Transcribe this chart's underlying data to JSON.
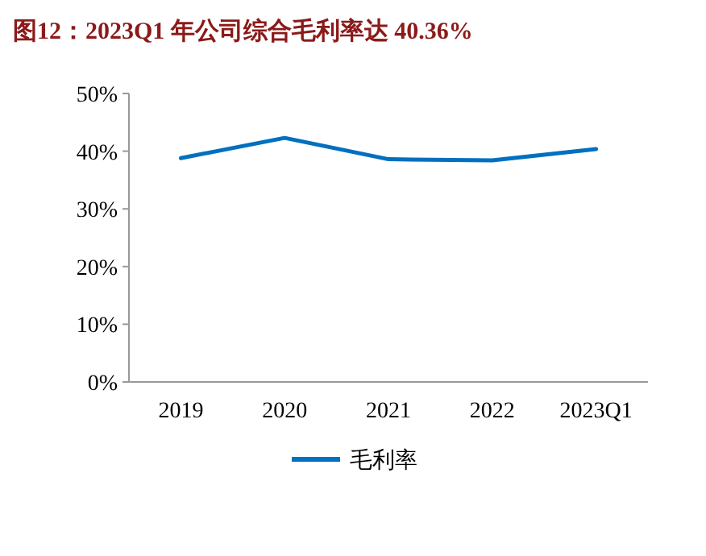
{
  "chart_data": {
    "type": "line",
    "title": "图12：2023Q1 年公司综合毛利率达 40.36%",
    "categories": [
      "2019",
      "2020",
      "2021",
      "2022",
      "2023Q1"
    ],
    "series": [
      {
        "name": "毛利率",
        "color": "#0070c0",
        "values": [
          38.8,
          42.3,
          38.6,
          38.4,
          40.36
        ]
      }
    ],
    "ylim": [
      0,
      50
    ],
    "yticks": [
      {
        "value": 0,
        "label": "0%"
      },
      {
        "value": 10,
        "label": "10%"
      },
      {
        "value": 20,
        "label": "20%"
      },
      {
        "value": 30,
        "label": "30%"
      },
      {
        "value": 40,
        "label": "40%"
      },
      {
        "value": 50,
        "label": "50%"
      }
    ],
    "grid": false,
    "legend": "bottom",
    "marker": "none",
    "line_style": "solid"
  }
}
